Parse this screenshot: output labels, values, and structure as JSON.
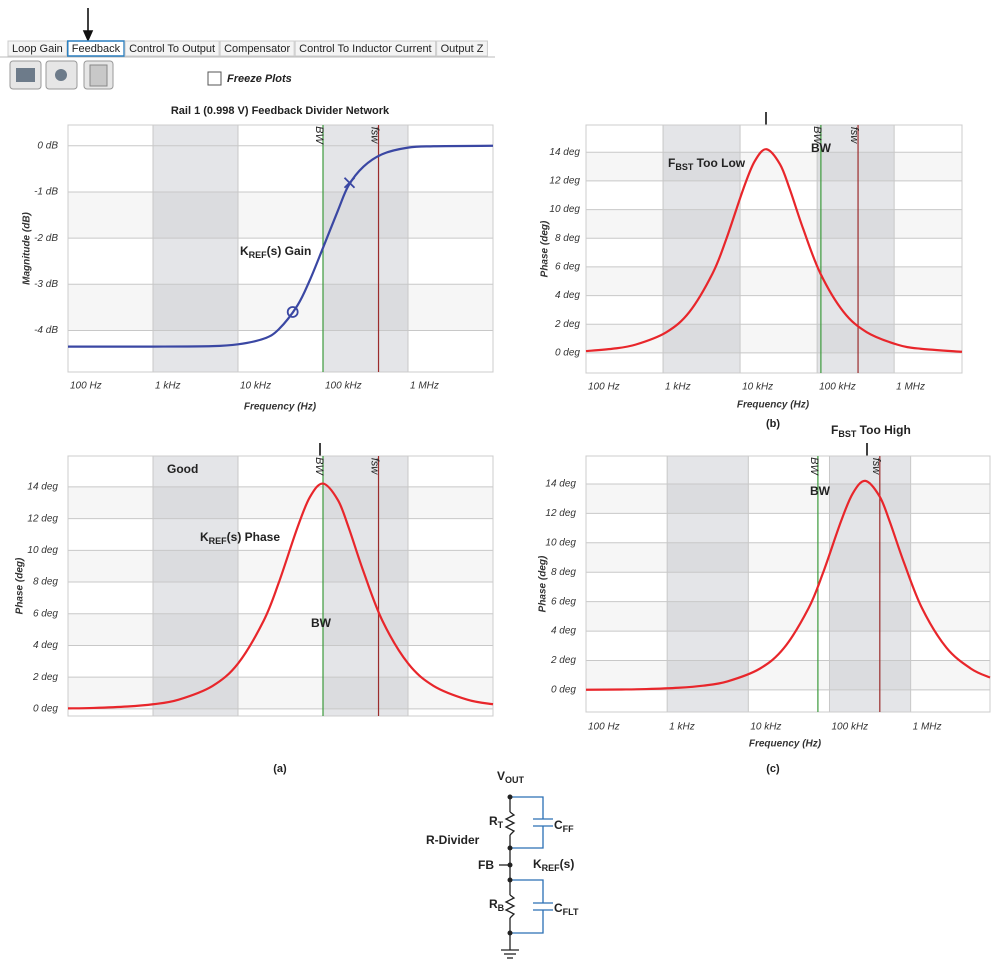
{
  "tabs": {
    "items": [
      "Loop Gain",
      "Feedback",
      "Control To Output",
      "Compensator",
      "Control To Inductor Current",
      "Output Z"
    ],
    "selected": 1
  },
  "toolbar": {
    "freeze_label": "Freeze Plots",
    "freeze_checked": false
  },
  "chart_data": [
    {
      "type": "line",
      "title": "Rail 1 (0.998 V) Feedback Divider Network",
      "x_label": "Frequency (Hz)",
      "y_label": "Magnitude (dB)",
      "log_x": true,
      "grid": true,
      "xlim": [
        100,
        10000000
      ],
      "xticks": [
        {
          "value": 100,
          "label": "100 Hz"
        },
        {
          "value": 1000,
          "label": "1 kHz"
        },
        {
          "value": 10000,
          "label": "10 kHz"
        },
        {
          "value": 100000,
          "label": "100 kHz"
        },
        {
          "value": 1000000,
          "label": "1 MHz"
        }
      ],
      "ylim": [
        -4.9,
        0.45
      ],
      "yticks": [
        {
          "value": -4,
          "label": "-4 dB"
        },
        {
          "value": -3,
          "label": "-3 dB"
        },
        {
          "value": -2,
          "label": "-2 dB"
        },
        {
          "value": -1,
          "label": "-1 dB"
        },
        {
          "value": 0,
          "label": "0 dB"
        }
      ],
      "x": [
        100,
        1000,
        5000,
        10000,
        20000,
        30000,
        50000,
        70000,
        100000,
        150000,
        200000,
        300000,
        500000,
        1000000,
        2000000,
        10000000
      ],
      "series": [
        {
          "color": "#3a47a3",
          "values": [
            -4.35,
            -4.35,
            -4.34,
            -4.3,
            -4.18,
            -3.98,
            -3.46,
            -2.91,
            -2.21,
            -1.4,
            -0.86,
            -0.45,
            -0.18,
            -0.04,
            -0.01,
            0
          ]
        }
      ],
      "points": [
        {
          "x": 44000,
          "y": -3.6,
          "marker": "o"
        },
        {
          "x": 205000,
          "y": -0.8,
          "marker": "x"
        }
      ],
      "vlines": [
        {
          "label": "BW",
          "x": 100000,
          "color": "#3c9a3c"
        },
        {
          "label": "fsw",
          "x": 450000,
          "color": "#9b2c2c"
        }
      ],
      "annotations": [
        {
          "base": "K",
          "sub": "REF",
          "rest": "(s) Gain"
        }
      ]
    },
    {
      "type": "line",
      "y_label": "Phase (deg)",
      "log_x": true,
      "grid": true,
      "xlim": [
        100,
        10000000
      ],
      "x_gridlines": [
        100,
        1000,
        10000,
        100000,
        1000000
      ],
      "ylim": [
        -0.45,
        15.95
      ],
      "yticks": [
        {
          "value": 0,
          "label": "0 deg"
        },
        {
          "value": 2,
          "label": "2 deg"
        },
        {
          "value": 4,
          "label": "4 deg"
        },
        {
          "value": 6,
          "label": "6 deg"
        },
        {
          "value": 8,
          "label": "8 deg"
        },
        {
          "value": 10,
          "label": "10 deg"
        },
        {
          "value": 12,
          "label": "12 deg"
        },
        {
          "value": 14,
          "label": "14 deg"
        }
      ],
      "x": [
        100,
        200,
        500,
        1000,
        2000,
        5000,
        10000,
        20000,
        30000,
        50000,
        70000,
        100000,
        150000,
        200000,
        300000,
        500000,
        1000000,
        2000000,
        5000000,
        10000000
      ],
      "series": [
        {
          "color": "#e8262b",
          "values": [
            0.03,
            0.06,
            0.15,
            0.29,
            0.58,
            1.44,
            2.86,
            5.55,
            7.92,
            11.43,
            13.35,
            14.21,
            13.16,
            11.45,
            8.65,
            5.56,
            2.87,
            1.45,
            0.58,
            0.29
          ]
        }
      ],
      "vlines": [
        {
          "label": "BW",
          "x": 100000,
          "color": "#3c9a3c"
        },
        {
          "label": "fsw",
          "x": 450000,
          "color": "#9b2c2c"
        }
      ],
      "annotations": [
        "Good",
        {
          "base": "K",
          "sub": "REF",
          "rest": "(s) Phase"
        },
        "BW"
      ]
    },
    {
      "type": "line",
      "x_label": "Frequency (Hz)",
      "y_label": "Phase (deg)",
      "log_x": true,
      "grid": true,
      "xlim": [
        100,
        7600000
      ],
      "xticks": [
        {
          "value": 100,
          "label": "100 Hz"
        },
        {
          "value": 1000,
          "label": "1 kHz"
        },
        {
          "value": 10000,
          "label": "10 kHz"
        },
        {
          "value": 100000,
          "label": "100 kHz"
        },
        {
          "value": 1000000,
          "label": "1 MHz"
        }
      ],
      "ylim": [
        -1.4,
        15.9
      ],
      "yticks": [
        {
          "value": 0,
          "label": "0 deg"
        },
        {
          "value": 2,
          "label": "2 deg"
        },
        {
          "value": 4,
          "label": "4 deg"
        },
        {
          "value": 6,
          "label": "6 deg"
        },
        {
          "value": 8,
          "label": "8 deg"
        },
        {
          "value": 10,
          "label": "10 deg"
        },
        {
          "value": 12,
          "label": "12 deg"
        },
        {
          "value": 14,
          "label": "14 deg"
        }
      ],
      "x": [
        100,
        220,
        440,
        1100,
        2200,
        4400,
        6600,
        11000,
        15400,
        22000,
        33000,
        44000,
        66000,
        110000,
        220000,
        440000,
        1100000,
        2200000,
        7600000
      ],
      "series": [
        {
          "color": "#e8262b",
          "values": [
            0.13,
            0.29,
            0.58,
            1.44,
            2.86,
            5.55,
            7.92,
            11.43,
            13.35,
            14.21,
            13.16,
            11.45,
            8.65,
            5.56,
            2.87,
            1.45,
            0.58,
            0.29,
            0.08
          ]
        }
      ],
      "vlines": [
        {
          "label": "BW",
          "x": 112000,
          "color": "#3c9a3c"
        },
        {
          "label": "fsw",
          "x": 340000,
          "color": "#9b2c2c"
        }
      ],
      "annotations": [
        {
          "base": "F",
          "sub": "BST",
          "rest": " Too Low"
        },
        "BW"
      ]
    },
    {
      "type": "line",
      "x_label": "Frequency (Hz)",
      "y_label": "Phase (deg)",
      "log_x": true,
      "grid": true,
      "xlim": [
        100,
        9500000
      ],
      "xticks": [
        {
          "value": 100,
          "label": "100 Hz"
        },
        {
          "value": 1000,
          "label": "1 kHz"
        },
        {
          "value": 10000,
          "label": "10 kHz"
        },
        {
          "value": 100000,
          "label": "100 kHz"
        },
        {
          "value": 1000000,
          "label": "1 MHz"
        }
      ],
      "ylim": [
        -1.5,
        15.9
      ],
      "yticks": [
        {
          "value": 0,
          "label": "0 deg"
        },
        {
          "value": 2,
          "label": "2 deg"
        },
        {
          "value": 4,
          "label": "4 deg"
        },
        {
          "value": 6,
          "label": "6 deg"
        },
        {
          "value": 8,
          "label": "8 deg"
        },
        {
          "value": 10,
          "label": "10 deg"
        },
        {
          "value": 12,
          "label": "12 deg"
        },
        {
          "value": 14,
          "label": "14 deg"
        }
      ],
      "x": [
        100,
        276,
        552,
        1380,
        2760,
        5520,
        13800,
        27600,
        55200,
        82800,
        138000,
        193200,
        276000,
        414000,
        552000,
        828000,
        1380000,
        2760000,
        5520000,
        9500000
      ],
      "series": [
        {
          "color": "#e8262b",
          "values": [
            0.01,
            0.03,
            0.06,
            0.15,
            0.29,
            0.58,
            1.44,
            2.86,
            5.55,
            7.92,
            11.43,
            13.35,
            14.21,
            13.16,
            11.45,
            8.65,
            5.56,
            2.87,
            1.45,
            0.84
          ]
        }
      ],
      "vlines": [
        {
          "label": "BW",
          "x": 72000,
          "color": "#3c9a3c"
        },
        {
          "label": "fsw",
          "x": 417000,
          "color": "#9b2c2c"
        }
      ],
      "annotations": [
        {
          "base": "F",
          "sub": "BST",
          "rest": " Too High"
        },
        "BW"
      ]
    }
  ],
  "captions": [
    "(a)",
    "(b)",
    "(c)"
  ],
  "circuit": {
    "vout": {
      "base": "V",
      "sub": "OUT"
    },
    "rt": {
      "base": "R",
      "sub": "T"
    },
    "cff": {
      "base": "C",
      "sub": "FF"
    },
    "divider": "R-Divider",
    "fb": "FB",
    "kref": {
      "base": "K",
      "sub": "REF",
      "rest": "(s)"
    },
    "rb": {
      "base": "R",
      "sub": "B"
    },
    "cflt": {
      "base": "C",
      "sub": "FLT"
    }
  }
}
